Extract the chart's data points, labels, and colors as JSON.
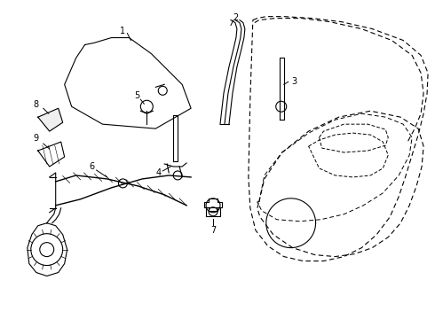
{
  "bg_color": "#ffffff",
  "line_color": "#000000",
  "fig_width": 4.9,
  "fig_height": 3.6,
  "dpi": 100,
  "font_size": 7,
  "lw": 0.8
}
